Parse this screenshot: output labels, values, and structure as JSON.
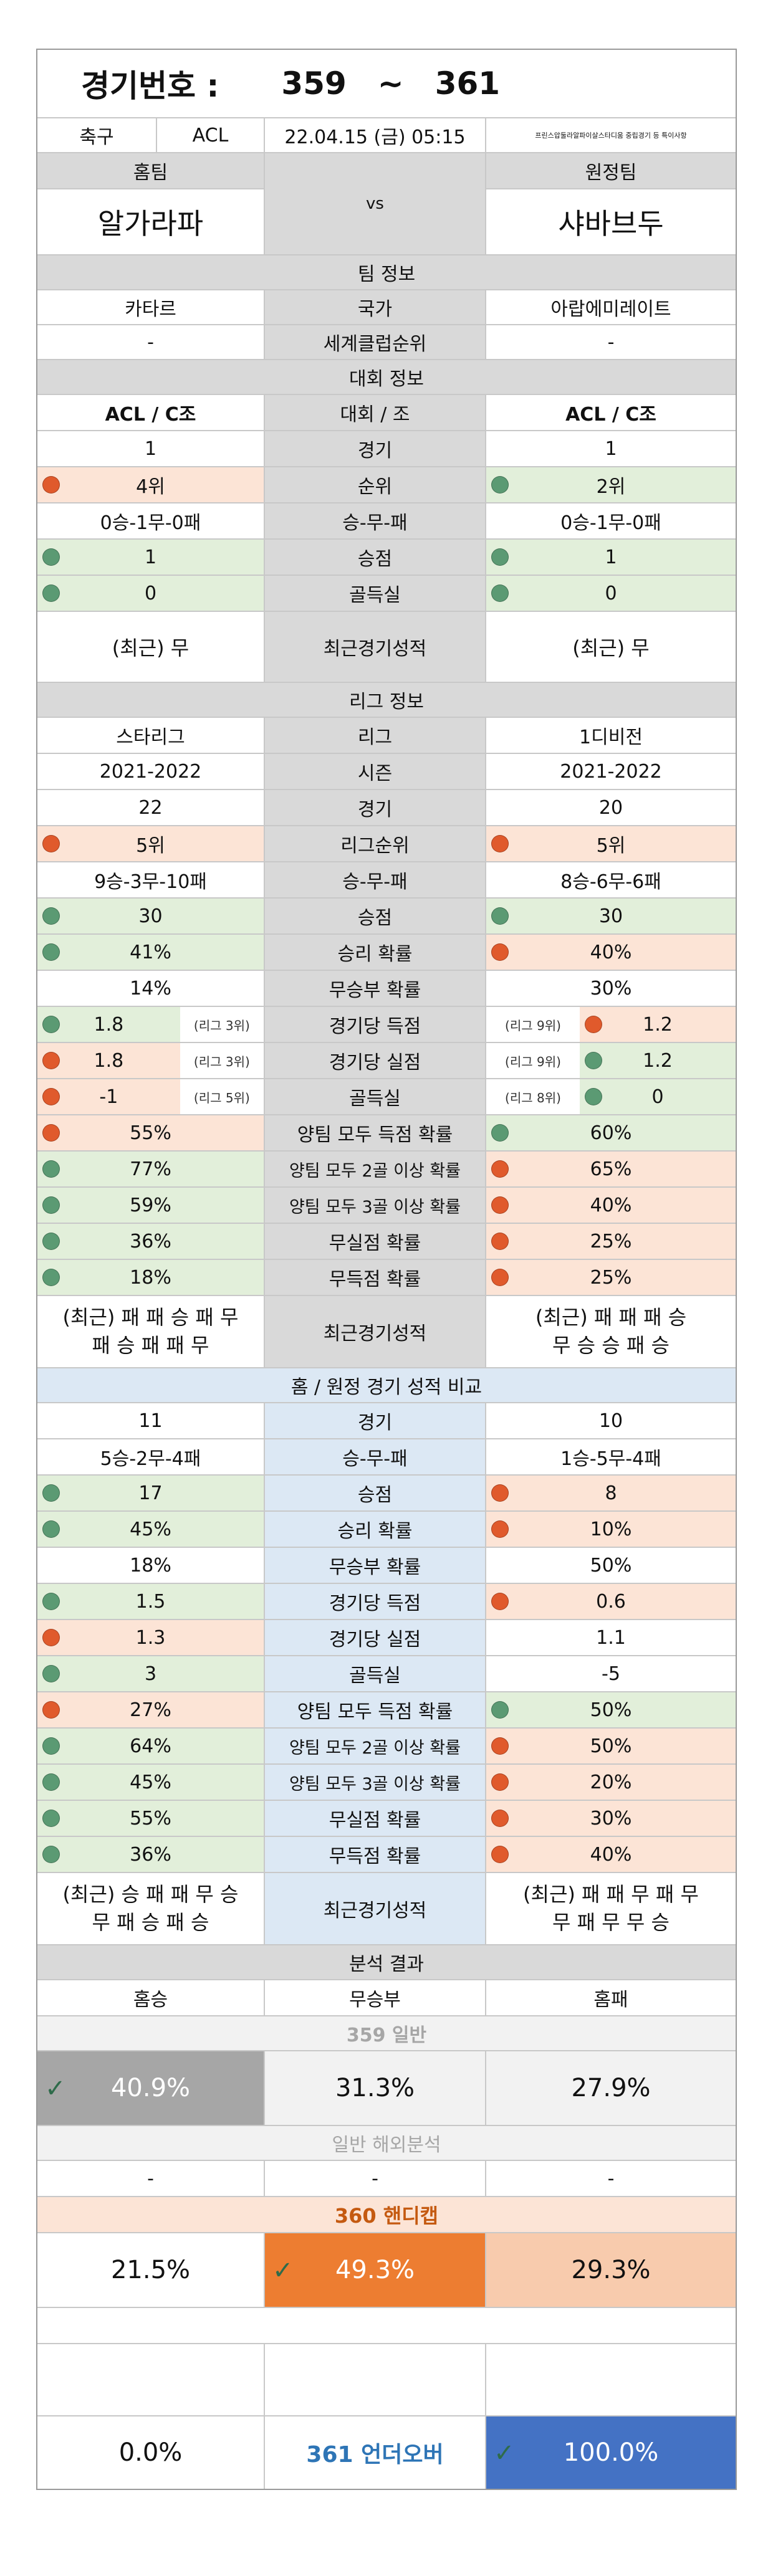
{
  "header": {
    "game_label": "경기번호 :",
    "num_from": "359",
    "tilde": "~",
    "num_to": "361",
    "sport": "축구",
    "league": "ACL",
    "datetime": "22.04.15 (금) 05:15",
    "note": "프린스압둘라알파이살스타디움 중립경기 등 특이사항",
    "home_label": "홈팀",
    "away_label": "원정팀",
    "home_team": "알가라파",
    "vs": "vs",
    "away_team": "샤바브두"
  },
  "team_info": {
    "title": "팀 정보",
    "rows": [
      {
        "home": "카타르",
        "label": "국가",
        "away": "아랍에미레이트"
      },
      {
        "home": "-",
        "label": "세계클럽순위",
        "away": "-"
      }
    ]
  },
  "tournament_info": {
    "title": "대회 정보",
    "rows": [
      {
        "home": "ACL / C조",
        "label": "대회 / 조",
        "away": "ACL / C조"
      },
      {
        "home": "1",
        "label": "경기",
        "away": "1"
      },
      {
        "home": "4위",
        "label": "순위",
        "away": "2위"
      },
      {
        "home": "0승-1무-0패",
        "label": "승-무-패",
        "away": "0승-1무-0패"
      },
      {
        "home": "1",
        "label": "승점",
        "away": "1"
      },
      {
        "home": "0",
        "label": "골득실",
        "away": "0"
      }
    ],
    "recent": {
      "home": "(최근) 무",
      "label": "최근경기성적",
      "away": "(최근) 무"
    }
  },
  "league_info": {
    "title": "리그 정보",
    "rows": [
      {
        "home": "스타리그",
        "label": "리그",
        "away": "1디비전"
      },
      {
        "home": "2021-2022",
        "label": "시즌",
        "away": "2021-2022"
      },
      {
        "home": "22",
        "label": "경기",
        "away": "20"
      },
      {
        "home": "5위",
        "label": "리그순위",
        "away": "5위"
      },
      {
        "home": "9승-3무-10패",
        "label": "승-무-패",
        "away": "8승-6무-6패"
      },
      {
        "home": "30",
        "label": "승점",
        "away": "30"
      },
      {
        "home": "41%",
        "label": "승리 확률",
        "away": "40%"
      },
      {
        "home": "14%",
        "label": "무승부 확률",
        "away": "30%"
      },
      {
        "home": "1.8",
        "home_rank": "(리그 3위)",
        "label": "경기당 득점",
        "away": "1.2",
        "away_rank": "(리그 9위)"
      },
      {
        "home": "1.8",
        "home_rank": "(리그 3위)",
        "label": "경기당 실점",
        "away": "1.2",
        "away_rank": "(리그 9위)"
      },
      {
        "home": "-1",
        "home_rank": "(리그 5위)",
        "label": "골득실",
        "away": "0",
        "away_rank": "(리그 8위)"
      },
      {
        "home": "55%",
        "label": "양팀 모두 득점 확률",
        "away": "60%"
      },
      {
        "home": "77%",
        "label": "양팀 모두 2골 이상 확률",
        "away": "65%"
      },
      {
        "home": "59%",
        "label": "양팀 모두 3골 이상 확률",
        "away": "40%"
      },
      {
        "home": "36%",
        "label": "무실점 확률",
        "away": "25%"
      },
      {
        "home": "18%",
        "label": "무득점 확률",
        "away": "25%"
      }
    ],
    "recent": {
      "home_line1": "(최근) 패 패 승 패 무",
      "home_line2": "패 승 패 패 무",
      "label": "최근경기성적",
      "away_line1": "(최근) 패 패 패 승",
      "away_line2": "무 승 승 패 승"
    }
  },
  "home_away": {
    "title": "홈 / 원정 경기 성적 비교",
    "rows": [
      {
        "home": "11",
        "label": "경기",
        "away": "10"
      },
      {
        "home": "5승-2무-4패",
        "label": "승-무-패",
        "away": "1승-5무-4패"
      },
      {
        "home": "17",
        "label": "승점",
        "away": "8"
      },
      {
        "home": "45%",
        "label": "승리 확률",
        "away": "10%"
      },
      {
        "home": "18%",
        "label": "무승부 확률",
        "away": "50%"
      },
      {
        "home": "1.5",
        "label": "경기당 득점",
        "away": "0.6"
      },
      {
        "home": "1.3",
        "label": "경기당 실점",
        "away": "1.1"
      },
      {
        "home": "3",
        "label": "골득실",
        "away": "-5"
      },
      {
        "home": "27%",
        "label": "양팀 모두 득점 확률",
        "away": "50%"
      },
      {
        "home": "64%",
        "label": "양팀 모두 2골 이상 확률",
        "away": "50%"
      },
      {
        "home": "45%",
        "label": "양팀 모두 3골 이상 확률",
        "away": "20%"
      },
      {
        "home": "55%",
        "label": "무실점 확률",
        "away": "30%"
      },
      {
        "home": "36%",
        "label": "무득점 확률",
        "away": "40%"
      }
    ],
    "recent": {
      "home_line1": "(최근) 승 패 패 무 승",
      "home_line2": "무 패 승 패 승",
      "label": "최근경기성적",
      "away_line1": "(최근) 패 패 무 패 무",
      "away_line2": "무 패 무 무 승"
    }
  },
  "analysis": {
    "title": "분석 결과",
    "home_win": "홈승",
    "draw": "무승부",
    "home_loss": "홈패",
    "general_title": "359 일반",
    "general": {
      "home": "40.9%",
      "draw": "31.3%",
      "away": "27.9%"
    },
    "overseas_title": "일반 해외분석",
    "overseas": {
      "home": "-",
      "draw": "-",
      "away": "-"
    },
    "handicap_title": "360 핸디캡",
    "handicap": {
      "home": "21.5%",
      "draw": "49.3%",
      "away": "29.3%"
    },
    "underover_title": "361 언더오버",
    "underover": {
      "under": "0.0%",
      "over": "100.0%"
    }
  },
  "colors": {
    "header_gray": "#d9d9d9",
    "header_blue": "#dce8f4",
    "orange_tint": "#fce4d6",
    "green_tint": "#e2efda",
    "dot_green": "#5b9a73",
    "dot_orange": "#e05a2c",
    "pick_gray": "#a6a6a6",
    "pick_orange": "#ed7d31",
    "pick_blue": "#4472c4",
    "handicap_title": "#c55a11",
    "underover_title": "#2e75b6"
  },
  "icons": {
    "pick_marker": "check-icon",
    "indicator": "circle-dot-icon"
  }
}
